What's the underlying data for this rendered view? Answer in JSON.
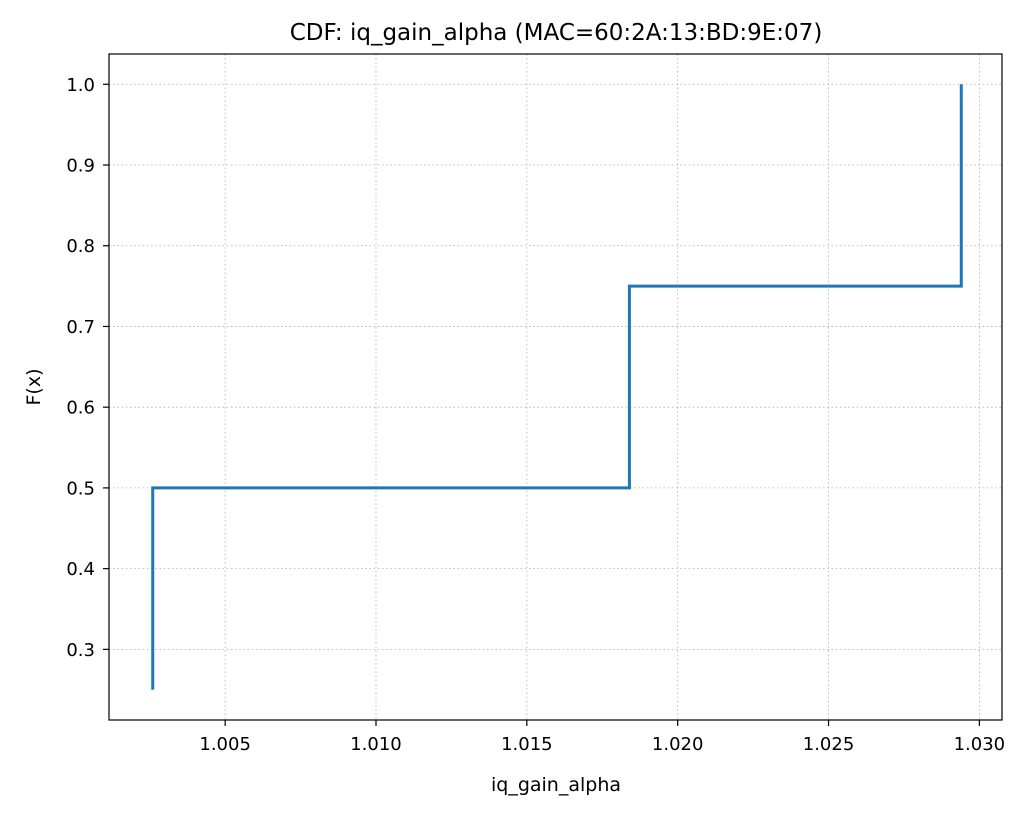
{
  "chart_data": {
    "type": "line",
    "drawstyle": "steps-post",
    "title": "CDF: iq_gain_alpha (MAC=60:2A:13:BD:9E:07)",
    "xlabel": "iq_gain_alpha",
    "ylabel": "F(x)",
    "xlim": [
      1.00115,
      1.03075
    ],
    "ylim": [
      0.2125,
      1.0375
    ],
    "xticks": [
      1.005,
      1.01,
      1.015,
      1.02,
      1.025,
      1.03
    ],
    "xtick_labels": [
      "1.005",
      "1.010",
      "1.015",
      "1.020",
      "1.025",
      "1.030"
    ],
    "yticks": [
      0.3,
      0.4,
      0.5,
      0.6,
      0.7,
      0.8,
      0.9,
      1.0
    ],
    "ytick_labels": [
      "0.3",
      "0.4",
      "0.5",
      "0.6",
      "0.7",
      "0.8",
      "0.9",
      "1.0"
    ],
    "grid": true,
    "color": "#1f77b4",
    "x": [
      1.0026,
      1.0026,
      1.0184,
      1.0294,
      1.0294
    ],
    "y": [
      0.25,
      0.5,
      0.75,
      0.75,
      1.0
    ]
  }
}
